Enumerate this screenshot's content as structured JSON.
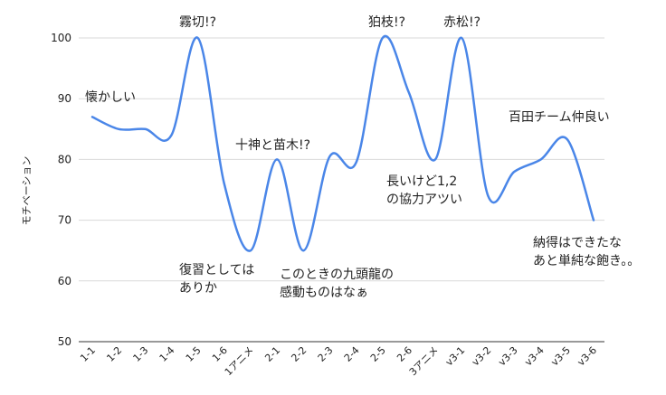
{
  "chart_data": {
    "type": "line",
    "title": "",
    "xlabel": "",
    "ylabel": "モチベーション",
    "ylim": [
      50,
      100
    ],
    "yticks": [
      50,
      60,
      70,
      80,
      90,
      100
    ],
    "grid": true,
    "line_color": "#4a86e8",
    "categories": [
      "1-1",
      "1-2",
      "1-3",
      "1-4",
      "1-5",
      "1-6",
      "1アニメ",
      "2-1",
      "2-2",
      "2-3",
      "2-4",
      "2-5",
      "2-6",
      "3アニメ",
      "v3-1",
      "v3-2",
      "v3-3",
      "v3-4",
      "v3-5",
      "v3-6"
    ],
    "series": [
      {
        "values": [
          87,
          85,
          85,
          84,
          100,
          76,
          65,
          80,
          65,
          80.5,
          79.5,
          100,
          91,
          80,
          100,
          74,
          78,
          80,
          83.3,
          70
        ]
      }
    ],
    "annotations": [
      {
        "id": "a0",
        "text": "懐かしい"
      },
      {
        "id": "a1",
        "text": "霧切!?"
      },
      {
        "id": "a2",
        "text": "十神と苗木!?"
      },
      {
        "id": "a3",
        "text": "復習としては"
      },
      {
        "id": "a4",
        "text": "ありか"
      },
      {
        "id": "a5",
        "text": "このときの九頭龍の"
      },
      {
        "id": "a6",
        "text": "感動ものはなぁ"
      },
      {
        "id": "a7",
        "text": "狛枝!?"
      },
      {
        "id": "a8",
        "text": "長いけど1,2"
      },
      {
        "id": "a9",
        "text": "の協力アツい"
      },
      {
        "id": "a10",
        "text": "赤松!?"
      },
      {
        "id": "a11",
        "text": "百田チーム仲良い"
      },
      {
        "id": "a12",
        "text": "納得はできたな"
      },
      {
        "id": "a13",
        "text": "あと単純な飽き。。"
      }
    ]
  }
}
